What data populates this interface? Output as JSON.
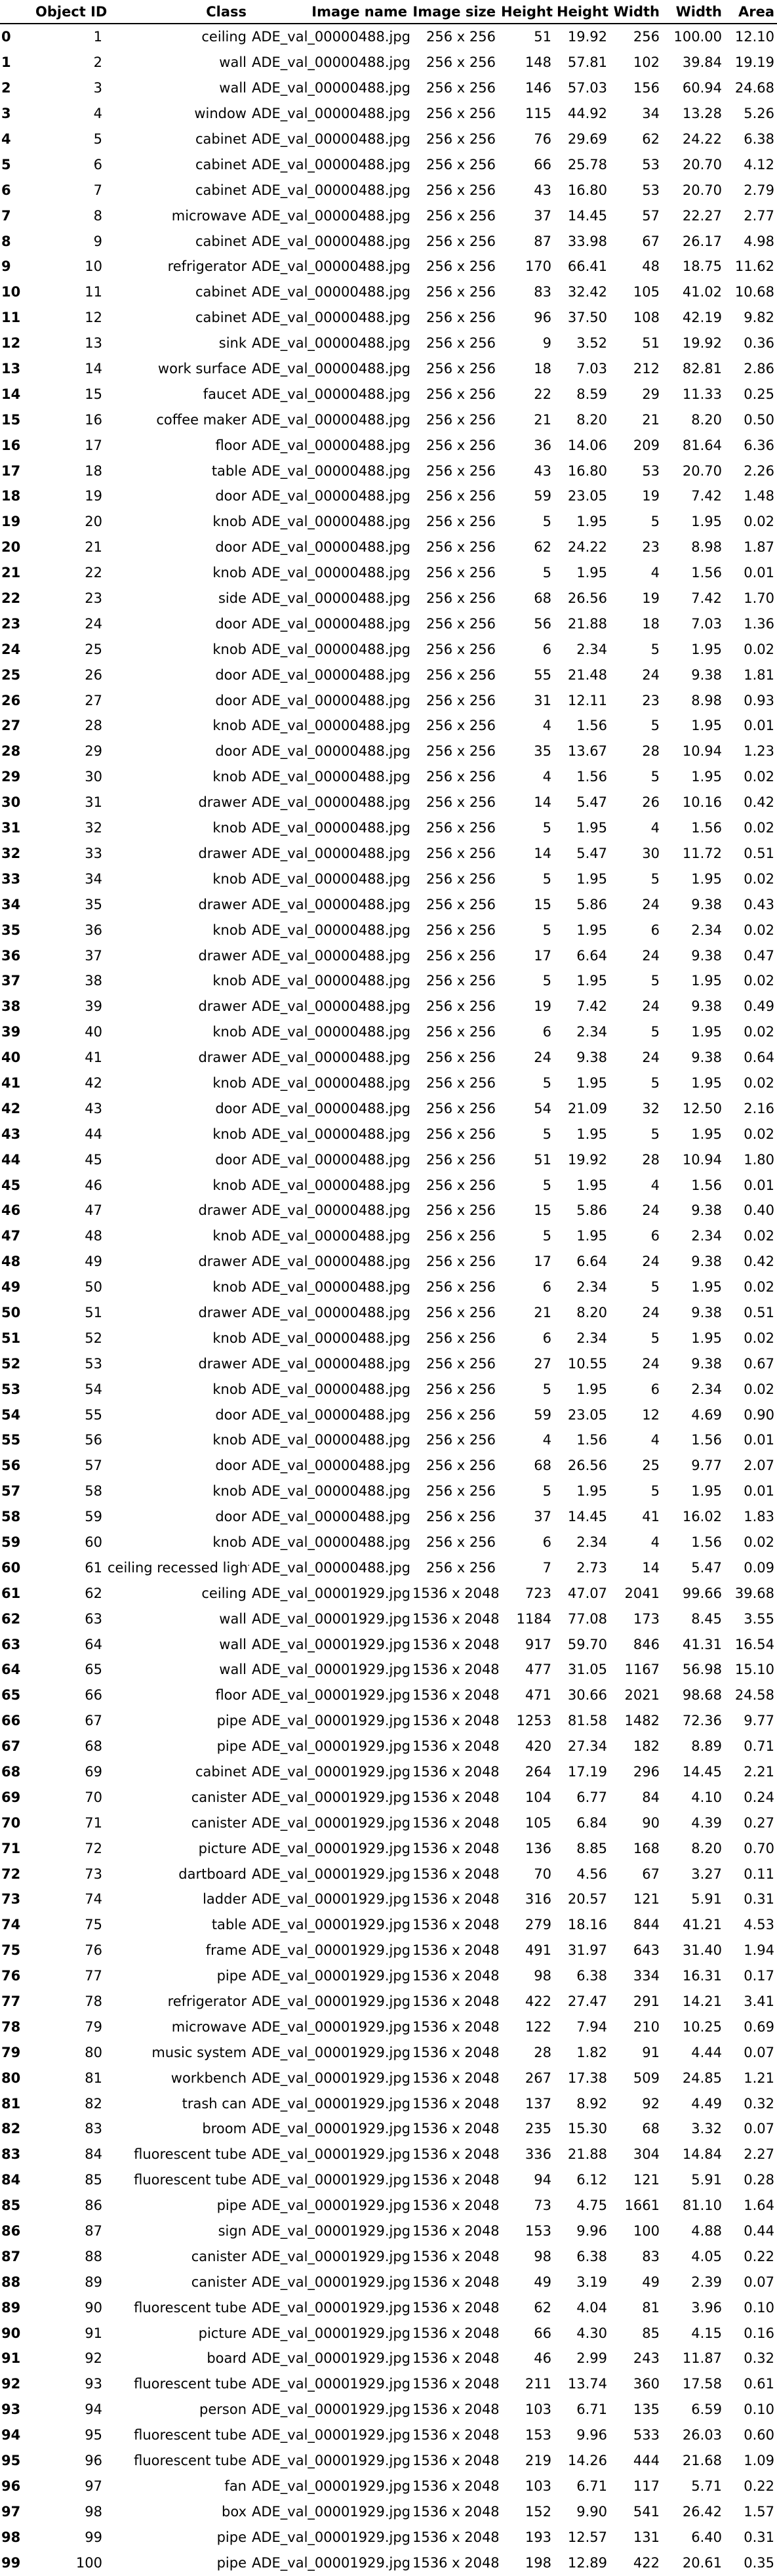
{
  "table": {
    "headers": [
      "",
      "Object ID",
      "Class",
      "Image name",
      "Image size",
      "Height",
      "Height",
      "Width",
      "Width",
      "Area"
    ],
    "rows": [
      [
        "0",
        "1",
        "ceiling",
        "ADE_val_00000488.jpg",
        "256 x 256",
        "51",
        "19.92",
        "256",
        "100.00",
        "12.10"
      ],
      [
        "1",
        "2",
        "wall",
        "ADE_val_00000488.jpg",
        "256 x 256",
        "148",
        "57.81",
        "102",
        "39.84",
        "19.19"
      ],
      [
        "2",
        "3",
        "wall",
        "ADE_val_00000488.jpg",
        "256 x 256",
        "146",
        "57.03",
        "156",
        "60.94",
        "24.68"
      ],
      [
        "3",
        "4",
        "window",
        "ADE_val_00000488.jpg",
        "256 x 256",
        "115",
        "44.92",
        "34",
        "13.28",
        "5.26"
      ],
      [
        "4",
        "5",
        "cabinet",
        "ADE_val_00000488.jpg",
        "256 x 256",
        "76",
        "29.69",
        "62",
        "24.22",
        "6.38"
      ],
      [
        "5",
        "6",
        "cabinet",
        "ADE_val_00000488.jpg",
        "256 x 256",
        "66",
        "25.78",
        "53",
        "20.70",
        "4.12"
      ],
      [
        "6",
        "7",
        "cabinet",
        "ADE_val_00000488.jpg",
        "256 x 256",
        "43",
        "16.80",
        "53",
        "20.70",
        "2.79"
      ],
      [
        "7",
        "8",
        "microwave",
        "ADE_val_00000488.jpg",
        "256 x 256",
        "37",
        "14.45",
        "57",
        "22.27",
        "2.77"
      ],
      [
        "8",
        "9",
        "cabinet",
        "ADE_val_00000488.jpg",
        "256 x 256",
        "87",
        "33.98",
        "67",
        "26.17",
        "4.98"
      ],
      [
        "9",
        "10",
        "refrigerator",
        "ADE_val_00000488.jpg",
        "256 x 256",
        "170",
        "66.41",
        "48",
        "18.75",
        "11.62"
      ],
      [
        "10",
        "11",
        "cabinet",
        "ADE_val_00000488.jpg",
        "256 x 256",
        "83",
        "32.42",
        "105",
        "41.02",
        "10.68"
      ],
      [
        "11",
        "12",
        "cabinet",
        "ADE_val_00000488.jpg",
        "256 x 256",
        "96",
        "37.50",
        "108",
        "42.19",
        "9.82"
      ],
      [
        "12",
        "13",
        "sink",
        "ADE_val_00000488.jpg",
        "256 x 256",
        "9",
        "3.52",
        "51",
        "19.92",
        "0.36"
      ],
      [
        "13",
        "14",
        "work surface",
        "ADE_val_00000488.jpg",
        "256 x 256",
        "18",
        "7.03",
        "212",
        "82.81",
        "2.86"
      ],
      [
        "14",
        "15",
        "faucet",
        "ADE_val_00000488.jpg",
        "256 x 256",
        "22",
        "8.59",
        "29",
        "11.33",
        "0.25"
      ],
      [
        "15",
        "16",
        "coffee maker",
        "ADE_val_00000488.jpg",
        "256 x 256",
        "21",
        "8.20",
        "21",
        "8.20",
        "0.50"
      ],
      [
        "16",
        "17",
        "floor",
        "ADE_val_00000488.jpg",
        "256 x 256",
        "36",
        "14.06",
        "209",
        "81.64",
        "6.36"
      ],
      [
        "17",
        "18",
        "table",
        "ADE_val_00000488.jpg",
        "256 x 256",
        "43",
        "16.80",
        "53",
        "20.70",
        "2.26"
      ],
      [
        "18",
        "19",
        "door",
        "ADE_val_00000488.jpg",
        "256 x 256",
        "59",
        "23.05",
        "19",
        "7.42",
        "1.48"
      ],
      [
        "19",
        "20",
        "knob",
        "ADE_val_00000488.jpg",
        "256 x 256",
        "5",
        "1.95",
        "5",
        "1.95",
        "0.02"
      ],
      [
        "20",
        "21",
        "door",
        "ADE_val_00000488.jpg",
        "256 x 256",
        "62",
        "24.22",
        "23",
        "8.98",
        "1.87"
      ],
      [
        "21",
        "22",
        "knob",
        "ADE_val_00000488.jpg",
        "256 x 256",
        "5",
        "1.95",
        "4",
        "1.56",
        "0.01"
      ],
      [
        "22",
        "23",
        "side",
        "ADE_val_00000488.jpg",
        "256 x 256",
        "68",
        "26.56",
        "19",
        "7.42",
        "1.70"
      ],
      [
        "23",
        "24",
        "door",
        "ADE_val_00000488.jpg",
        "256 x 256",
        "56",
        "21.88",
        "18",
        "7.03",
        "1.36"
      ],
      [
        "24",
        "25",
        "knob",
        "ADE_val_00000488.jpg",
        "256 x 256",
        "6",
        "2.34",
        "5",
        "1.95",
        "0.02"
      ],
      [
        "25",
        "26",
        "door",
        "ADE_val_00000488.jpg",
        "256 x 256",
        "55",
        "21.48",
        "24",
        "9.38",
        "1.81"
      ],
      [
        "26",
        "27",
        "door",
        "ADE_val_00000488.jpg",
        "256 x 256",
        "31",
        "12.11",
        "23",
        "8.98",
        "0.93"
      ],
      [
        "27",
        "28",
        "knob",
        "ADE_val_00000488.jpg",
        "256 x 256",
        "4",
        "1.56",
        "5",
        "1.95",
        "0.01"
      ],
      [
        "28",
        "29",
        "door",
        "ADE_val_00000488.jpg",
        "256 x 256",
        "35",
        "13.67",
        "28",
        "10.94",
        "1.23"
      ],
      [
        "29",
        "30",
        "knob",
        "ADE_val_00000488.jpg",
        "256 x 256",
        "4",
        "1.56",
        "5",
        "1.95",
        "0.02"
      ],
      [
        "30",
        "31",
        "drawer",
        "ADE_val_00000488.jpg",
        "256 x 256",
        "14",
        "5.47",
        "26",
        "10.16",
        "0.42"
      ],
      [
        "31",
        "32",
        "knob",
        "ADE_val_00000488.jpg",
        "256 x 256",
        "5",
        "1.95",
        "4",
        "1.56",
        "0.02"
      ],
      [
        "32",
        "33",
        "drawer",
        "ADE_val_00000488.jpg",
        "256 x 256",
        "14",
        "5.47",
        "30",
        "11.72",
        "0.51"
      ],
      [
        "33",
        "34",
        "knob",
        "ADE_val_00000488.jpg",
        "256 x 256",
        "5",
        "1.95",
        "5",
        "1.95",
        "0.02"
      ],
      [
        "34",
        "35",
        "drawer",
        "ADE_val_00000488.jpg",
        "256 x 256",
        "15",
        "5.86",
        "24",
        "9.38",
        "0.43"
      ],
      [
        "35",
        "36",
        "knob",
        "ADE_val_00000488.jpg",
        "256 x 256",
        "5",
        "1.95",
        "6",
        "2.34",
        "0.02"
      ],
      [
        "36",
        "37",
        "drawer",
        "ADE_val_00000488.jpg",
        "256 x 256",
        "17",
        "6.64",
        "24",
        "9.38",
        "0.47"
      ],
      [
        "37",
        "38",
        "knob",
        "ADE_val_00000488.jpg",
        "256 x 256",
        "5",
        "1.95",
        "5",
        "1.95",
        "0.02"
      ],
      [
        "38",
        "39",
        "drawer",
        "ADE_val_00000488.jpg",
        "256 x 256",
        "19",
        "7.42",
        "24",
        "9.38",
        "0.49"
      ],
      [
        "39",
        "40",
        "knob",
        "ADE_val_00000488.jpg",
        "256 x 256",
        "6",
        "2.34",
        "5",
        "1.95",
        "0.02"
      ],
      [
        "40",
        "41",
        "drawer",
        "ADE_val_00000488.jpg",
        "256 x 256",
        "24",
        "9.38",
        "24",
        "9.38",
        "0.64"
      ],
      [
        "41",
        "42",
        "knob",
        "ADE_val_00000488.jpg",
        "256 x 256",
        "5",
        "1.95",
        "5",
        "1.95",
        "0.02"
      ],
      [
        "42",
        "43",
        "door",
        "ADE_val_00000488.jpg",
        "256 x 256",
        "54",
        "21.09",
        "32",
        "12.50",
        "2.16"
      ],
      [
        "43",
        "44",
        "knob",
        "ADE_val_00000488.jpg",
        "256 x 256",
        "5",
        "1.95",
        "5",
        "1.95",
        "0.02"
      ],
      [
        "44",
        "45",
        "door",
        "ADE_val_00000488.jpg",
        "256 x 256",
        "51",
        "19.92",
        "28",
        "10.94",
        "1.80"
      ],
      [
        "45",
        "46",
        "knob",
        "ADE_val_00000488.jpg",
        "256 x 256",
        "5",
        "1.95",
        "4",
        "1.56",
        "0.01"
      ],
      [
        "46",
        "47",
        "drawer",
        "ADE_val_00000488.jpg",
        "256 x 256",
        "15",
        "5.86",
        "24",
        "9.38",
        "0.40"
      ],
      [
        "47",
        "48",
        "knob",
        "ADE_val_00000488.jpg",
        "256 x 256",
        "5",
        "1.95",
        "6",
        "2.34",
        "0.02"
      ],
      [
        "48",
        "49",
        "drawer",
        "ADE_val_00000488.jpg",
        "256 x 256",
        "17",
        "6.64",
        "24",
        "9.38",
        "0.42"
      ],
      [
        "49",
        "50",
        "knob",
        "ADE_val_00000488.jpg",
        "256 x 256",
        "6",
        "2.34",
        "5",
        "1.95",
        "0.02"
      ],
      [
        "50",
        "51",
        "drawer",
        "ADE_val_00000488.jpg",
        "256 x 256",
        "21",
        "8.20",
        "24",
        "9.38",
        "0.51"
      ],
      [
        "51",
        "52",
        "knob",
        "ADE_val_00000488.jpg",
        "256 x 256",
        "6",
        "2.34",
        "5",
        "1.95",
        "0.02"
      ],
      [
        "52",
        "53",
        "drawer",
        "ADE_val_00000488.jpg",
        "256 x 256",
        "27",
        "10.55",
        "24",
        "9.38",
        "0.67"
      ],
      [
        "53",
        "54",
        "knob",
        "ADE_val_00000488.jpg",
        "256 x 256",
        "5",
        "1.95",
        "6",
        "2.34",
        "0.02"
      ],
      [
        "54",
        "55",
        "door",
        "ADE_val_00000488.jpg",
        "256 x 256",
        "59",
        "23.05",
        "12",
        "4.69",
        "0.90"
      ],
      [
        "55",
        "56",
        "knob",
        "ADE_val_00000488.jpg",
        "256 x 256",
        "4",
        "1.56",
        "4",
        "1.56",
        "0.01"
      ],
      [
        "56",
        "57",
        "door",
        "ADE_val_00000488.jpg",
        "256 x 256",
        "68",
        "26.56",
        "25",
        "9.77",
        "2.07"
      ],
      [
        "57",
        "58",
        "knob",
        "ADE_val_00000488.jpg",
        "256 x 256",
        "5",
        "1.95",
        "5",
        "1.95",
        "0.01"
      ],
      [
        "58",
        "59",
        "door",
        "ADE_val_00000488.jpg",
        "256 x 256",
        "37",
        "14.45",
        "41",
        "16.02",
        "1.83"
      ],
      [
        "59",
        "60",
        "knob",
        "ADE_val_00000488.jpg",
        "256 x 256",
        "6",
        "2.34",
        "4",
        "1.56",
        "0.02"
      ],
      [
        "60",
        "61",
        "ceiling recessed light",
        "ADE_val_00000488.jpg",
        "256 x 256",
        "7",
        "2.73",
        "14",
        "5.47",
        "0.09"
      ],
      [
        "61",
        "62",
        "ceiling",
        "ADE_val_00001929.jpg",
        "1536 x 2048",
        "723",
        "47.07",
        "2041",
        "99.66",
        "39.68"
      ],
      [
        "62",
        "63",
        "wall",
        "ADE_val_00001929.jpg",
        "1536 x 2048",
        "1184",
        "77.08",
        "173",
        "8.45",
        "3.55"
      ],
      [
        "63",
        "64",
        "wall",
        "ADE_val_00001929.jpg",
        "1536 x 2048",
        "917",
        "59.70",
        "846",
        "41.31",
        "16.54"
      ],
      [
        "64",
        "65",
        "wall",
        "ADE_val_00001929.jpg",
        "1536 x 2048",
        "477",
        "31.05",
        "1167",
        "56.98",
        "15.10"
      ],
      [
        "65",
        "66",
        "floor",
        "ADE_val_00001929.jpg",
        "1536 x 2048",
        "471",
        "30.66",
        "2021",
        "98.68",
        "24.58"
      ],
      [
        "66",
        "67",
        "pipe",
        "ADE_val_00001929.jpg",
        "1536 x 2048",
        "1253",
        "81.58",
        "1482",
        "72.36",
        "9.77"
      ],
      [
        "67",
        "68",
        "pipe",
        "ADE_val_00001929.jpg",
        "1536 x 2048",
        "420",
        "27.34",
        "182",
        "8.89",
        "0.71"
      ],
      [
        "68",
        "69",
        "cabinet",
        "ADE_val_00001929.jpg",
        "1536 x 2048",
        "264",
        "17.19",
        "296",
        "14.45",
        "2.21"
      ],
      [
        "69",
        "70",
        "canister",
        "ADE_val_00001929.jpg",
        "1536 x 2048",
        "104",
        "6.77",
        "84",
        "4.10",
        "0.24"
      ],
      [
        "70",
        "71",
        "canister",
        "ADE_val_00001929.jpg",
        "1536 x 2048",
        "105",
        "6.84",
        "90",
        "4.39",
        "0.27"
      ],
      [
        "71",
        "72",
        "picture",
        "ADE_val_00001929.jpg",
        "1536 x 2048",
        "136",
        "8.85",
        "168",
        "8.20",
        "0.70"
      ],
      [
        "72",
        "73",
        "dartboard",
        "ADE_val_00001929.jpg",
        "1536 x 2048",
        "70",
        "4.56",
        "67",
        "3.27",
        "0.11"
      ],
      [
        "73",
        "74",
        "ladder",
        "ADE_val_00001929.jpg",
        "1536 x 2048",
        "316",
        "20.57",
        "121",
        "5.91",
        "0.31"
      ],
      [
        "74",
        "75",
        "table",
        "ADE_val_00001929.jpg",
        "1536 x 2048",
        "279",
        "18.16",
        "844",
        "41.21",
        "4.53"
      ],
      [
        "75",
        "76",
        "frame",
        "ADE_val_00001929.jpg",
        "1536 x 2048",
        "491",
        "31.97",
        "643",
        "31.40",
        "1.94"
      ],
      [
        "76",
        "77",
        "pipe",
        "ADE_val_00001929.jpg",
        "1536 x 2048",
        "98",
        "6.38",
        "334",
        "16.31",
        "0.17"
      ],
      [
        "77",
        "78",
        "refrigerator",
        "ADE_val_00001929.jpg",
        "1536 x 2048",
        "422",
        "27.47",
        "291",
        "14.21",
        "3.41"
      ],
      [
        "78",
        "79",
        "microwave",
        "ADE_val_00001929.jpg",
        "1536 x 2048",
        "122",
        "7.94",
        "210",
        "10.25",
        "0.69"
      ],
      [
        "79",
        "80",
        "music system",
        "ADE_val_00001929.jpg",
        "1536 x 2048",
        "28",
        "1.82",
        "91",
        "4.44",
        "0.07"
      ],
      [
        "80",
        "81",
        "workbench",
        "ADE_val_00001929.jpg",
        "1536 x 2048",
        "267",
        "17.38",
        "509",
        "24.85",
        "1.21"
      ],
      [
        "81",
        "82",
        "trash can",
        "ADE_val_00001929.jpg",
        "1536 x 2048",
        "137",
        "8.92",
        "92",
        "4.49",
        "0.32"
      ],
      [
        "82",
        "83",
        "broom",
        "ADE_val_00001929.jpg",
        "1536 x 2048",
        "235",
        "15.30",
        "68",
        "3.32",
        "0.07"
      ],
      [
        "83",
        "84",
        "fluorescent tube",
        "ADE_val_00001929.jpg",
        "1536 x 2048",
        "336",
        "21.88",
        "304",
        "14.84",
        "2.27"
      ],
      [
        "84",
        "85",
        "fluorescent tube",
        "ADE_val_00001929.jpg",
        "1536 x 2048",
        "94",
        "6.12",
        "121",
        "5.91",
        "0.28"
      ],
      [
        "85",
        "86",
        "pipe",
        "ADE_val_00001929.jpg",
        "1536 x 2048",
        "73",
        "4.75",
        "1661",
        "81.10",
        "1.64"
      ],
      [
        "86",
        "87",
        "sign",
        "ADE_val_00001929.jpg",
        "1536 x 2048",
        "153",
        "9.96",
        "100",
        "4.88",
        "0.44"
      ],
      [
        "87",
        "88",
        "canister",
        "ADE_val_00001929.jpg",
        "1536 x 2048",
        "98",
        "6.38",
        "83",
        "4.05",
        "0.22"
      ],
      [
        "88",
        "89",
        "canister",
        "ADE_val_00001929.jpg",
        "1536 x 2048",
        "49",
        "3.19",
        "49",
        "2.39",
        "0.07"
      ],
      [
        "89",
        "90",
        "fluorescent tube",
        "ADE_val_00001929.jpg",
        "1536 x 2048",
        "62",
        "4.04",
        "81",
        "3.96",
        "0.10"
      ],
      [
        "90",
        "91",
        "picture",
        "ADE_val_00001929.jpg",
        "1536 x 2048",
        "66",
        "4.30",
        "85",
        "4.15",
        "0.16"
      ],
      [
        "91",
        "92",
        "board",
        "ADE_val_00001929.jpg",
        "1536 x 2048",
        "46",
        "2.99",
        "243",
        "11.87",
        "0.32"
      ],
      [
        "92",
        "93",
        "fluorescent tube",
        "ADE_val_00001929.jpg",
        "1536 x 2048",
        "211",
        "13.74",
        "360",
        "17.58",
        "0.61"
      ],
      [
        "93",
        "94",
        "person",
        "ADE_val_00001929.jpg",
        "1536 x 2048",
        "103",
        "6.71",
        "135",
        "6.59",
        "0.10"
      ],
      [
        "94",
        "95",
        "fluorescent tube",
        "ADE_val_00001929.jpg",
        "1536 x 2048",
        "153",
        "9.96",
        "533",
        "26.03",
        "0.60"
      ],
      [
        "95",
        "96",
        "fluorescent tube",
        "ADE_val_00001929.jpg",
        "1536 x 2048",
        "219",
        "14.26",
        "444",
        "21.68",
        "1.09"
      ],
      [
        "96",
        "97",
        "fan",
        "ADE_val_00001929.jpg",
        "1536 x 2048",
        "103",
        "6.71",
        "117",
        "5.71",
        "0.22"
      ],
      [
        "97",
        "98",
        "box",
        "ADE_val_00001929.jpg",
        "1536 x 2048",
        "152",
        "9.90",
        "541",
        "26.42",
        "1.57"
      ],
      [
        "98",
        "99",
        "pipe",
        "ADE_val_00001929.jpg",
        "1536 x 2048",
        "193",
        "12.57",
        "131",
        "6.40",
        "0.31"
      ],
      [
        "99",
        "100",
        "pipe",
        "ADE_val_00001929.jpg",
        "1536 x 2048",
        "198",
        "12.89",
        "422",
        "20.61",
        "0.35"
      ]
    ]
  }
}
